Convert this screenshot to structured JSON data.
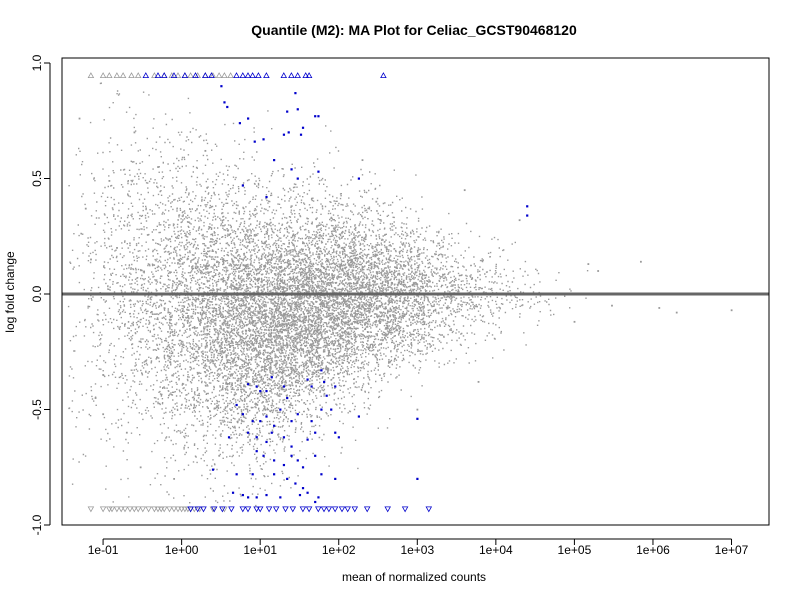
{
  "chart_data": {
    "type": "scatter",
    "title": "Quantile (M2): MA Plot for Celiac_GCST90468120",
    "xlabel": "mean of normalized counts",
    "ylabel": "log fold change",
    "x_scale": "log10",
    "xlim": [
      0.03,
      30000000
    ],
    "ylim": [
      -1.0,
      1.0
    ],
    "x_ticks": [
      0.1,
      1,
      10,
      100,
      1000,
      10000,
      100000,
      1000000,
      10000000
    ],
    "x_tick_labels": [
      "1e-01",
      "1e+00",
      "1e+01",
      "1e+02",
      "1e+03",
      "1e+04",
      "1e+05",
      "1e+06",
      "1e+07"
    ],
    "y_ticks": [
      -1.0,
      -0.5,
      0.0,
      0.5,
      1.0
    ],
    "y_tick_labels": [
      "-1.0",
      "-0.5",
      "0.0",
      "0.5",
      "1.0"
    ],
    "reference_line_y": 0.0,
    "grid": false,
    "legend": "none",
    "clip_values": {
      "upper": 0.93,
      "lower": -0.93
    },
    "colors": {
      "non_significant": "#9a9a9a",
      "significant": "#0000cc",
      "reference_line": "#666666",
      "axis": "#000000"
    },
    "series": [
      {
        "category": "non_significant",
        "description_of_bulk": "Dense cloud of thousands of gray points; wide spread (approx ±0.9) at low counts narrowing to approx ±0.15 near 1e+05",
        "points_sample": [
          [
            0.05,
            0.76
          ],
          [
            0.06,
            0.37
          ],
          [
            0.07,
            0.15
          ],
          [
            0.08,
            -0.45
          ],
          [
            0.1,
            -0.52
          ],
          [
            0.1,
            -0.35
          ],
          [
            0.12,
            0.49
          ],
          [
            0.15,
            0.2
          ],
          [
            0.2,
            -0.6
          ],
          [
            0.25,
            0.7
          ],
          [
            0.3,
            -0.75
          ],
          [
            0.5,
            0.55
          ],
          [
            0.8,
            -0.8
          ],
          [
            2.0,
            0.62
          ],
          [
            3.0,
            -0.7
          ],
          [
            200,
            0.58
          ],
          [
            300,
            0.4
          ],
          [
            1000,
            -0.5
          ],
          [
            4000,
            0.45
          ],
          [
            6000,
            -0.38
          ],
          [
            20000,
            0.32
          ],
          [
            100000,
            -0.12
          ],
          [
            150000,
            0.13
          ],
          [
            200000,
            0.1
          ],
          [
            300000,
            -0.05
          ],
          [
            700000,
            0.14
          ],
          [
            1200000,
            -0.06
          ],
          [
            2000000,
            -0.08
          ],
          [
            10000000,
            -0.07
          ]
        ],
        "clipped_up_x": [
          0.07,
          0.1,
          0.12,
          0.15,
          0.18,
          0.23,
          0.28,
          0.45,
          0.6,
          0.75,
          0.9,
          1.1,
          1.3,
          1.6,
          2.0,
          2.5,
          3.0,
          3.5,
          4.2
        ],
        "clipped_down_x": [
          0.07,
          0.1,
          0.12,
          0.13,
          0.15,
          0.17,
          0.19,
          0.22,
          0.25,
          0.28,
          0.32,
          0.38,
          0.45,
          0.5,
          0.55,
          0.6,
          0.7,
          0.8,
          0.9,
          1.0,
          1.1,
          1.2,
          1.3,
          1.45,
          1.7,
          2.5,
          3.5
        ]
      },
      {
        "category": "significant",
        "points": [
          [
            3.2,
            0.9
          ],
          [
            3.5,
            0.83
          ],
          [
            3.8,
            0.81
          ],
          [
            5.5,
            0.74
          ],
          [
            7.0,
            0.76
          ],
          [
            8.5,
            0.66
          ],
          [
            11.0,
            0.67
          ],
          [
            15.0,
            0.58
          ],
          [
            20.0,
            0.69
          ],
          [
            22.0,
            0.79
          ],
          [
            23.0,
            0.7
          ],
          [
            28.0,
            0.87
          ],
          [
            30.0,
            0.8
          ],
          [
            33.0,
            0.69
          ],
          [
            35.0,
            0.72
          ],
          [
            50.0,
            0.77
          ],
          [
            55.0,
            0.77
          ],
          [
            25.0,
            0.54
          ],
          [
            30.0,
            0.5
          ],
          [
            55.0,
            0.53
          ],
          [
            12.0,
            0.42
          ],
          [
            6.0,
            0.47
          ],
          [
            180.0,
            0.5
          ],
          [
            25000,
            0.38
          ],
          [
            25000,
            0.34
          ],
          [
            7.0,
            -0.39
          ],
          [
            9.0,
            -0.4
          ],
          [
            10.0,
            -0.42
          ],
          [
            12.0,
            -0.42
          ],
          [
            14.0,
            -0.36
          ],
          [
            20.0,
            -0.4
          ],
          [
            22.0,
            -0.45
          ],
          [
            40.0,
            -0.37
          ],
          [
            45.0,
            -0.4
          ],
          [
            60.0,
            -0.33
          ],
          [
            65.0,
            -0.38
          ],
          [
            70.0,
            -0.44
          ],
          [
            90.0,
            -0.4
          ],
          [
            5.0,
            -0.48
          ],
          [
            6.0,
            -0.52
          ],
          [
            8.0,
            -0.55
          ],
          [
            10.0,
            -0.55
          ],
          [
            12.0,
            -0.53
          ],
          [
            15.0,
            -0.57
          ],
          [
            18.0,
            -0.5
          ],
          [
            25.0,
            -0.55
          ],
          [
            30.0,
            -0.52
          ],
          [
            45.0,
            -0.55
          ],
          [
            60.0,
            -0.5
          ],
          [
            80.0,
            -0.5
          ],
          [
            180.0,
            -0.53
          ],
          [
            1000,
            -0.54
          ],
          [
            4.0,
            -0.62
          ],
          [
            7.0,
            -0.6
          ],
          [
            9.0,
            -0.62
          ],
          [
            12.0,
            -0.64
          ],
          [
            14.0,
            -0.6
          ],
          [
            20.0,
            -0.62
          ],
          [
            25.0,
            -0.66
          ],
          [
            40.0,
            -0.63
          ],
          [
            50.0,
            -0.6
          ],
          [
            90.0,
            -0.6
          ],
          [
            9.0,
            -0.68
          ],
          [
            11.0,
            -0.7
          ],
          [
            15.0,
            -0.72
          ],
          [
            20.0,
            -0.74
          ],
          [
            25.0,
            -0.7
          ],
          [
            30.0,
            -0.72
          ],
          [
            35.0,
            -0.75
          ],
          [
            50.0,
            -0.7
          ],
          [
            100.0,
            -0.62
          ],
          [
            2.5,
            -0.76
          ],
          [
            5.0,
            -0.78
          ],
          [
            8.0,
            -0.78
          ],
          [
            15.0,
            -0.78
          ],
          [
            22.0,
            -0.8
          ],
          [
            28.0,
            -0.82
          ],
          [
            35.0,
            -0.84
          ],
          [
            60.0,
            -0.78
          ],
          [
            90.0,
            -0.8
          ],
          [
            1000,
            -0.8
          ],
          [
            4.5,
            -0.86
          ],
          [
            6.0,
            -0.87
          ],
          [
            7.0,
            -0.88
          ],
          [
            9.0,
            -0.88
          ],
          [
            12.0,
            -0.87
          ],
          [
            18.0,
            -0.88
          ],
          [
            32.0,
            -0.87
          ],
          [
            40.0,
            -0.86
          ],
          [
            50.0,
            -0.9
          ],
          [
            55.0,
            -0.88
          ]
        ],
        "clipped_up_x": [
          0.35,
          0.5,
          0.6,
          0.8,
          1.1,
          1.5,
          2.0,
          2.4,
          5.0,
          6.0,
          7.0,
          8.0,
          9.5,
          12.0,
          20.0,
          25.0,
          30.0,
          38.0,
          42.0,
          370.0
        ],
        "clipped_down_x": [
          1.3,
          1.6,
          1.9,
          2.6,
          3.3,
          4.3,
          6.0,
          7.0,
          9.0,
          10.0,
          13.0,
          16.0,
          21.0,
          26.0,
          35.0,
          42.0,
          55.0,
          65.0,
          75.0,
          90.0,
          110.0,
          130.0,
          160.0,
          230.0,
          420.0,
          700.0,
          1400.0
        ]
      }
    ]
  }
}
